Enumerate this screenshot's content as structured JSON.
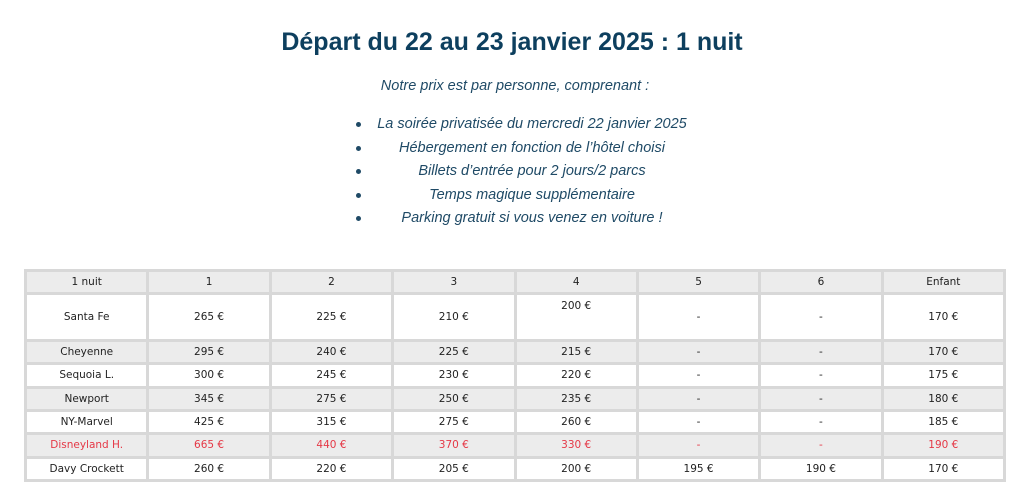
{
  "title": "Départ du 22 au 23 janvier 2025 : 1 nuit",
  "subtitle": "Notre prix est par personne, comprenant :",
  "bullets": [
    "La soirée privatisée du mercredi 22 janvier 2025",
    "Hébergement en fonction de l’hôtel choisi",
    "Billets d’entrée pour 2 jours/2 parcs",
    "Temps magique supplémentaire",
    "Parking gratuit si vous venez en voiture !"
  ],
  "colors": {
    "title": "#0d3f5e",
    "text": "#1f4a66",
    "highlight": "#e53846",
    "header_bg": "#ececec",
    "border": "#d8d8d8"
  },
  "table": {
    "headers": [
      "1 nuit",
      "1",
      "2",
      "3",
      "4",
      "5",
      "6",
      "Enfant"
    ],
    "rows": [
      [
        "Santa Fe",
        "265 €",
        "225 €",
        "210 €",
        "200 €",
        "-",
        "-",
        "170 €"
      ],
      [
        "Cheyenne",
        "295 €",
        "240 €",
        "225 €",
        "215 €",
        "-",
        "-",
        "170 €"
      ],
      [
        "Sequoia L.",
        "300 €",
        "245 €",
        "230 €",
        "220 €",
        "-",
        "-",
        "175 €"
      ],
      [
        "Newport",
        "345 €",
        "275 €",
        "250 €",
        "235 €",
        "-",
        "-",
        "180 €"
      ],
      [
        "NY-Marvel",
        "425 €",
        "315 €",
        "275 €",
        "260 €",
        "-",
        "-",
        "185 €"
      ],
      [
        "Disneyland H.",
        "665 €",
        "440 €",
        "370 €",
        "330 €",
        "-",
        "-",
        "190 €"
      ],
      [
        "Davy Crockett",
        "260 €",
        "220 €",
        "205 €",
        "200 €",
        "195 €",
        "190 €",
        "170 €"
      ]
    ]
  }
}
